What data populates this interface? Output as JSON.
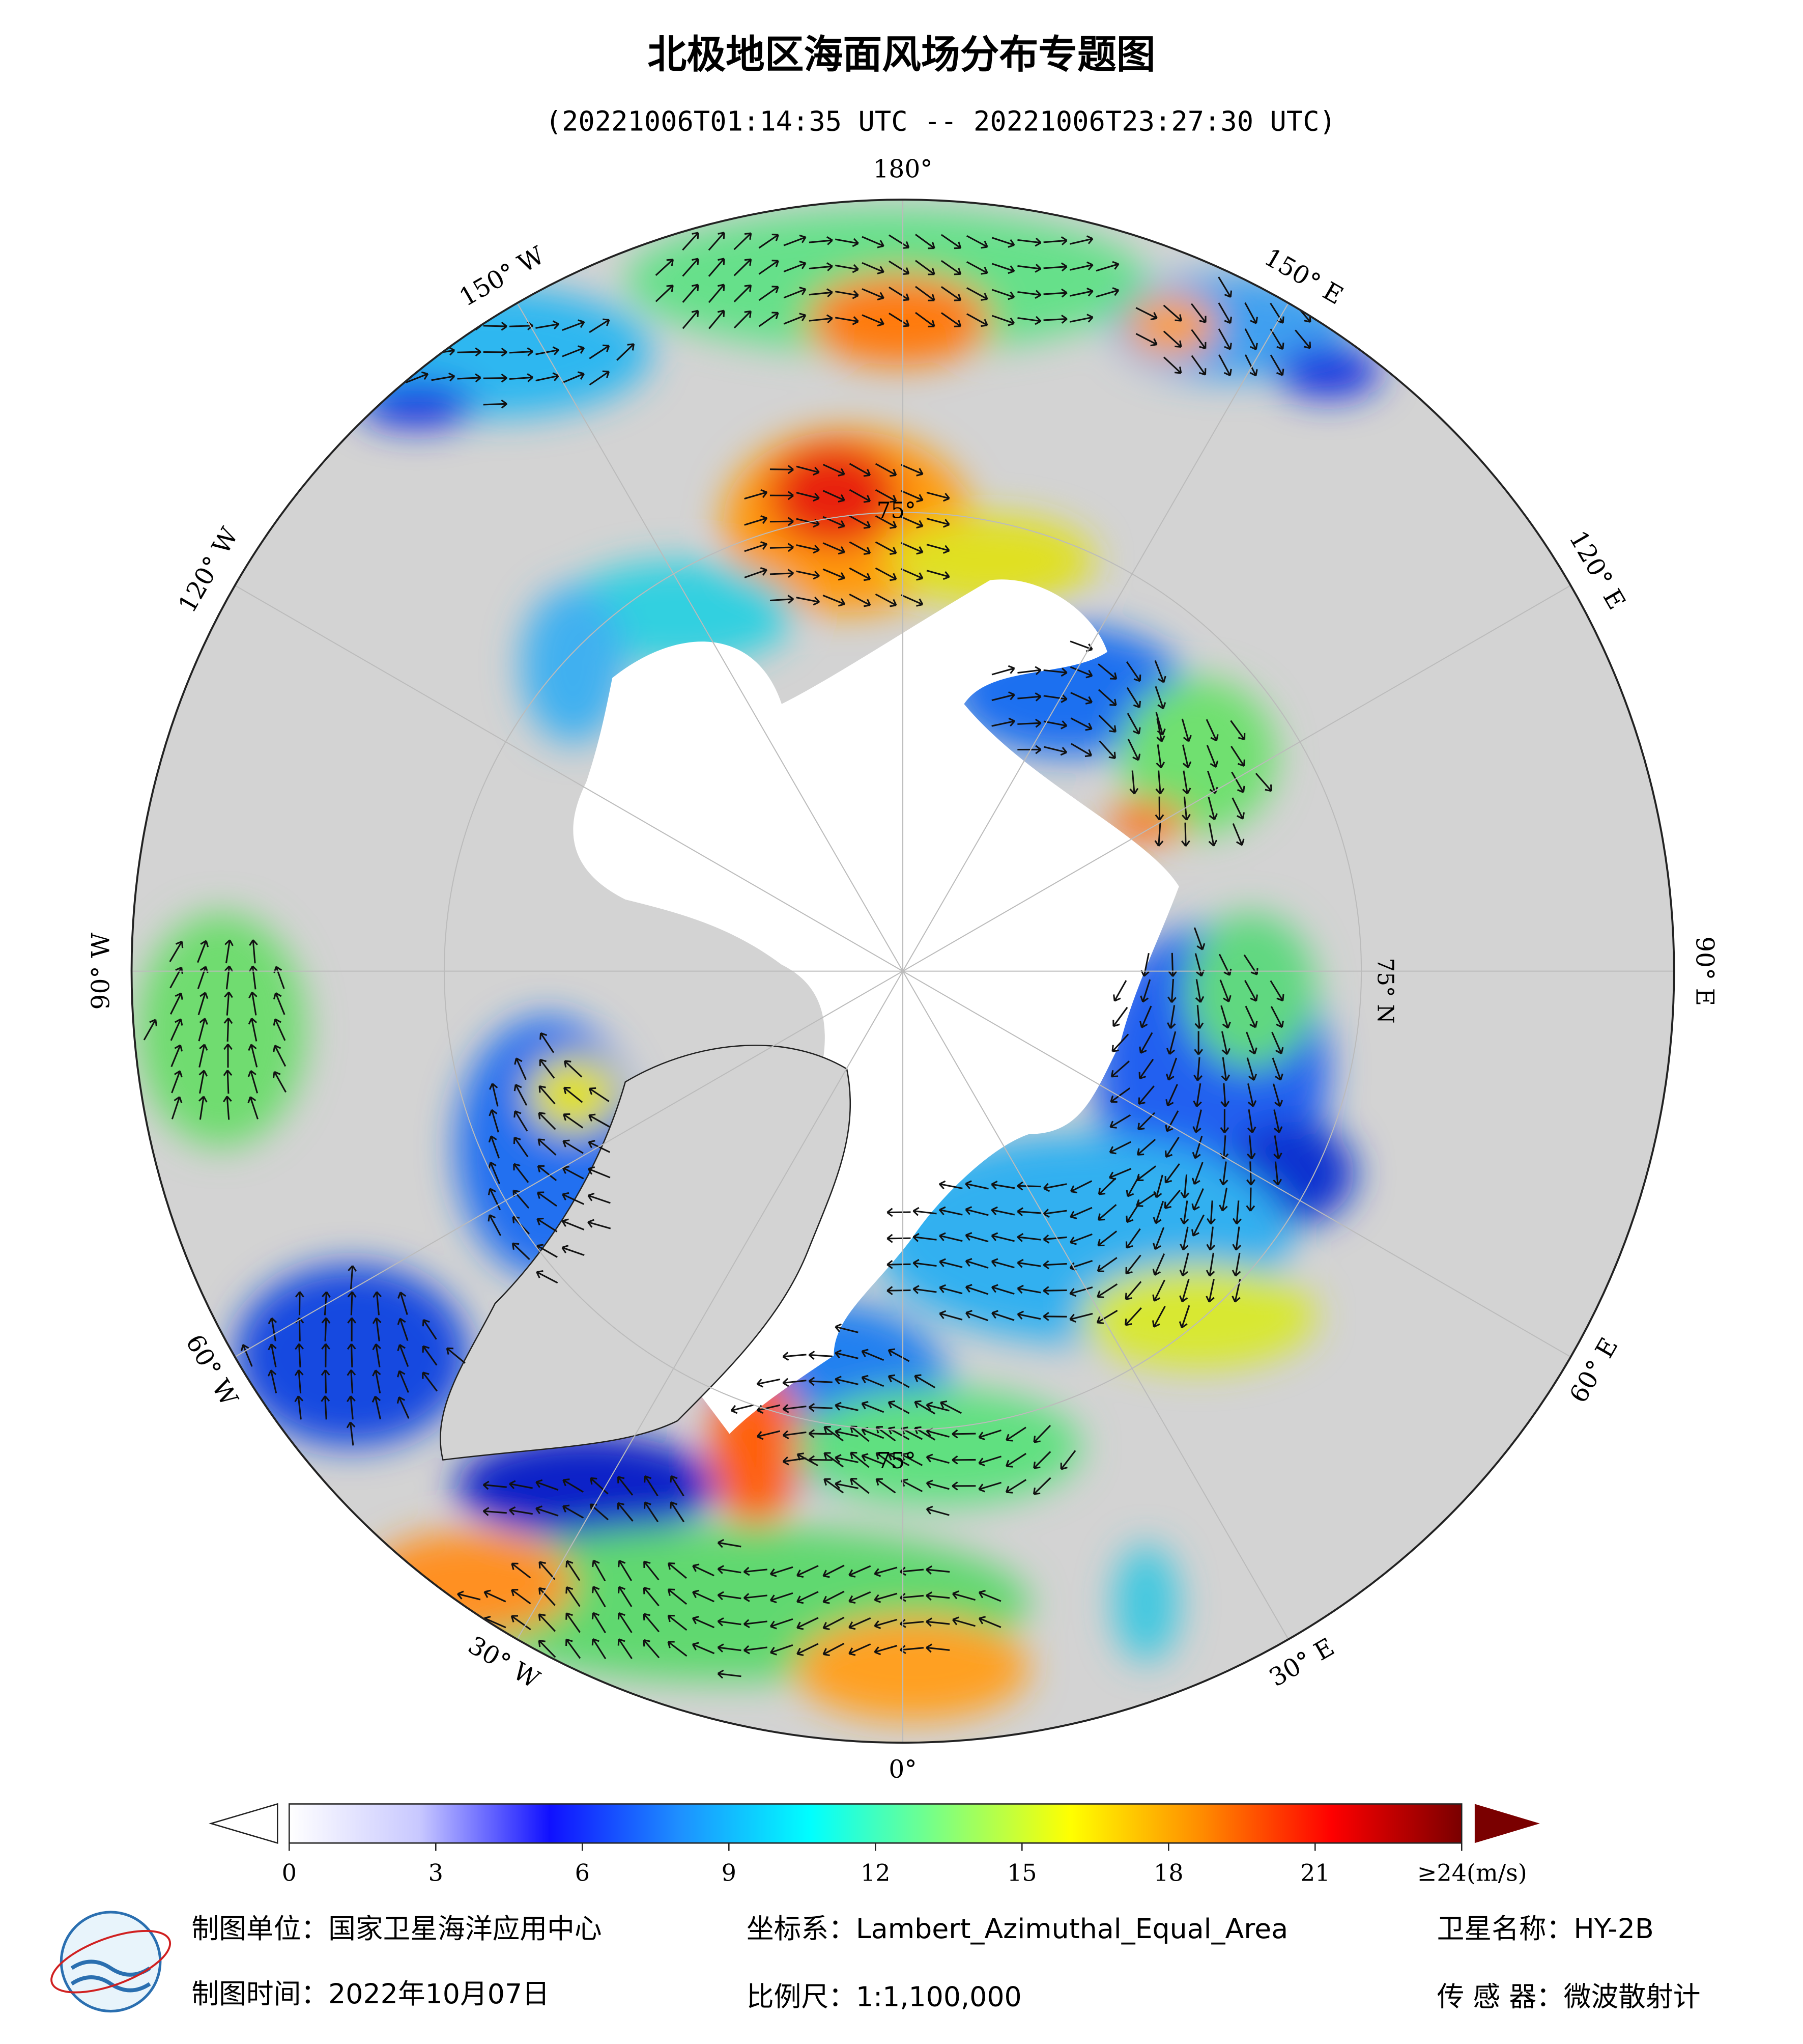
{
  "title": "北极地区海面风场分布专题图",
  "subtitle": "(20221006T01:14:35 UTC -- 20221006T23:27:30 UTC)",
  "longitude_labels": [
    "180°",
    "150° E",
    "120° E",
    "90° E",
    "60° E",
    "30° E",
    "0°",
    "30° W",
    "60° W",
    "90° W",
    "120° W",
    "150° W"
  ],
  "latitude_labels": [
    "75°",
    "75° N",
    "75°"
  ],
  "colorbar": {
    "range": [
      0,
      24
    ],
    "ticks": [
      0,
      3,
      6,
      9,
      12,
      15,
      18,
      21,
      {
        "value": 24,
        "label": "≥24(m/s)"
      }
    ],
    "colors": [
      "#ffffff",
      "#c8c8ff",
      "#1010ff",
      "#1e90ff",
      "#00ffff",
      "#7fff7f",
      "#ffff00",
      "#ff8c00",
      "#ff0000",
      "#7a0000"
    ]
  },
  "footer": [
    "制图单位：国家卫星海洋应用中心",
    "坐标系：Lambert_Azimuthal_Equal_Area",
    "卫星名称：HY-2B",
    "制图时间：2022年10月07日",
    "比例尺：1:1,100,000",
    "传 感 器：微波散射计"
  ]
}
